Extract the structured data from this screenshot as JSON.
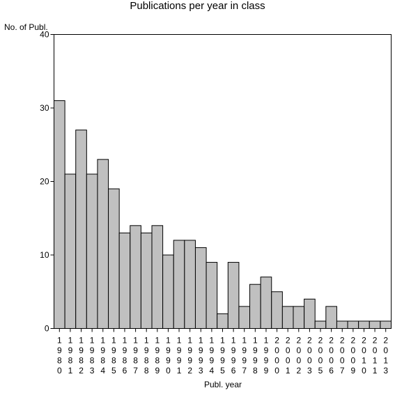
{
  "chart_data": {
    "type": "bar",
    "title": "Publications per year in class",
    "ylabel": "No. of Publ.",
    "xlabel": "Publ. year",
    "ylim": [
      0,
      40
    ],
    "yticks": [
      0,
      10,
      20,
      30,
      40
    ],
    "grid": false,
    "bar_color": "#c0c0c0",
    "categories": [
      "1980",
      "1981",
      "1982",
      "1983",
      "1984",
      "1985",
      "1986",
      "1987",
      "1988",
      "1989",
      "1990",
      "1991",
      "1992",
      "1993",
      "1994",
      "1995",
      "1996",
      "1997",
      "1998",
      "1999",
      "2000",
      "2001",
      "2002",
      "2003",
      "2005",
      "2006",
      "2007",
      "2009",
      "2010",
      "2011",
      "2013"
    ],
    "values": [
      31,
      21,
      27,
      21,
      23,
      19,
      13,
      14,
      13,
      14,
      10,
      12,
      12,
      11,
      9,
      2,
      9,
      3,
      6,
      7,
      5,
      3,
      3,
      4,
      1,
      3,
      1,
      1,
      1,
      1,
      1
    ]
  }
}
